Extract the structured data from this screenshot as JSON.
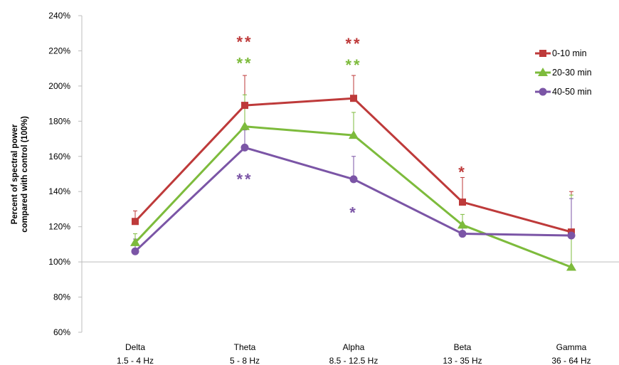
{
  "chart_data": {
    "type": "line",
    "ylabel_line1": "Percent of spectral power",
    "ylabel_line2": "compared with control (100%)",
    "ylim": [
      60,
      240
    ],
    "y_ticks": [
      60,
      80,
      100,
      120,
      140,
      160,
      180,
      200,
      220,
      240
    ],
    "y_tick_labels": [
      "60%",
      "80%",
      "100%",
      "120%",
      "140%",
      "160%",
      "180%",
      "200%",
      "220%",
      "240%"
    ],
    "baseline": 100,
    "categories": [
      "Delta",
      "Theta",
      "Alpha",
      "Beta",
      "Gamma"
    ],
    "category_ranges": [
      "1.5 - 4 Hz",
      "5 - 8 Hz",
      "8.5 - 12.5 Hz",
      "13 - 35 Hz",
      "36 - 64 Hz"
    ],
    "legend_position": "top-right",
    "series": [
      {
        "name": "0-10 min",
        "color": "#be3a3a",
        "marker": "square",
        "values": [
          123,
          189,
          193,
          134,
          117
        ],
        "error_upper": [
          129,
          206,
          206,
          148,
          140
        ]
      },
      {
        "name": "20-30 min",
        "color": "#7dbb3c",
        "marker": "triangle",
        "values": [
          111,
          177,
          172,
          121,
          97
        ],
        "error_upper": [
          116,
          195,
          185,
          127,
          138
        ]
      },
      {
        "name": "40-50 min",
        "color": "#7b55a6",
        "marker": "circle",
        "values": [
          106,
          165,
          147,
          116,
          115
        ],
        "error_upper": [
          113,
          175,
          160,
          121,
          136
        ]
      }
    ],
    "significance": [
      {
        "category_index": 1,
        "series_index": 0,
        "label": "**",
        "placement": "above",
        "y": 226
      },
      {
        "category_index": 1,
        "series_index": 1,
        "label": "**",
        "placement": "above",
        "y": 214
      },
      {
        "category_index": 1,
        "series_index": 2,
        "label": "**",
        "placement": "below",
        "y": 148
      },
      {
        "category_index": 2,
        "series_index": 0,
        "label": "**",
        "placement": "above",
        "y": 225
      },
      {
        "category_index": 2,
        "series_index": 1,
        "label": "**",
        "placement": "above",
        "y": 213
      },
      {
        "category_index": 2,
        "series_index": 2,
        "label": "*",
        "placement": "below",
        "y": 129
      },
      {
        "category_index": 3,
        "series_index": 0,
        "label": "*",
        "placement": "above",
        "y": 152
      }
    ]
  }
}
